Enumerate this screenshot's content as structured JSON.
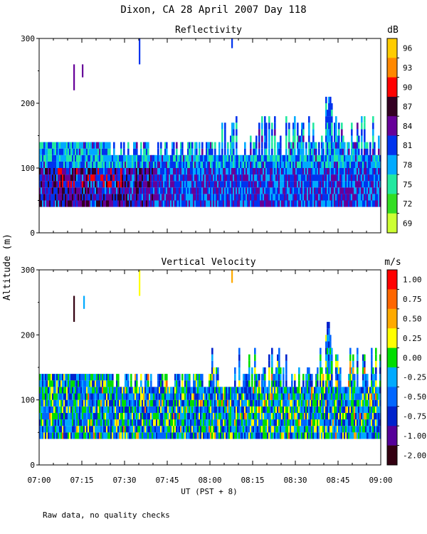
{
  "chart_data": {
    "type": "heatmap",
    "title": "Dixon, CA 28 April 2007  Day 118",
    "ylabel": "Altitude (m)",
    "xlabel": "UT  (PST + 8)",
    "footnote": "Raw data, no quality checks",
    "x_range_minutes": [
      0,
      120
    ],
    "x_tick_labels": [
      "07:00",
      "07:15",
      "07:30",
      "07:45",
      "08:00",
      "08:15",
      "08:30",
      "08:45",
      "09:00"
    ],
    "x_tick_minutes": [
      0,
      15,
      30,
      45,
      60,
      75,
      90,
      105,
      120
    ],
    "panels": [
      {
        "name": "reflectivity",
        "title": "Reflectivity",
        "unit": "dB",
        "ylim": [
          0,
          300
        ],
        "y_ticks": [
          0,
          100,
          200,
          300
        ],
        "y_tick_labels": [
          "0",
          "100",
          "200",
          "300"
        ],
        "colorbar_labels": [
          "96",
          "93",
          "90",
          "87",
          "84",
          "81",
          "78",
          "75",
          "72",
          "69"
        ],
        "colors": [
          "#ffcc00",
          "#ff8800",
          "#ff0000",
          "#330022",
          "#660099",
          "#0033ee",
          "#00aaff",
          "#22e8a0",
          "#33dd22",
          "#ccff33"
        ],
        "echo_base_m": 40,
        "echo_top_dense_m": 120,
        "echo_top_m": 140,
        "value_range_db": [
          69,
          99
        ]
      },
      {
        "name": "vertical-velocity",
        "title": "Vertical Velocity",
        "unit": "m/s",
        "ylim": [
          0,
          300
        ],
        "y_ticks": [
          0,
          100,
          200,
          300
        ],
        "y_tick_labels": [
          "0",
          "100",
          "200",
          "300"
        ],
        "colorbar_labels": [
          "1.00",
          "0.75",
          "0.50",
          "0.25",
          "0.00",
          "-0.25",
          "-0.50",
          "-0.75",
          "-1.00",
          "-2.00"
        ],
        "colors": [
          "#ff0000",
          "#ff6600",
          "#ffaa00",
          "#ffff00",
          "#00dd00",
          "#00aaff",
          "#0066ff",
          "#0022cc",
          "#550099",
          "#330011"
        ],
        "echo_base_m": 40,
        "echo_top_dense_m": 120,
        "echo_top_m": 140,
        "value_range_ms": [
          -2.0,
          1.25
        ]
      }
    ]
  }
}
